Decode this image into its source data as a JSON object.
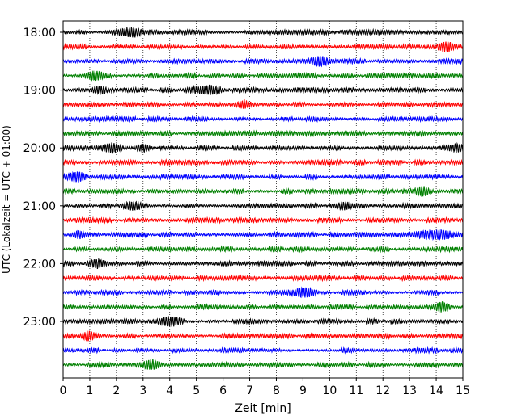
{
  "chart_data": {
    "type": "line",
    "title": "",
    "xlabel": "Zeit  [min]",
    "ylabel": "UTC (Lokalzeit = UTC + 01:00)",
    "xlim": [
      0,
      15
    ],
    "x_ticks": [
      "0",
      "1",
      "2",
      "3",
      "4",
      "5",
      "6",
      "7",
      "8",
      "9",
      "10",
      "11",
      "12",
      "13",
      "14",
      "15"
    ],
    "y_ticks": [
      "18:00",
      "19:00",
      "20:00",
      "21:00",
      "22:00",
      "23:00"
    ],
    "x_grid": "dotted",
    "trace_colors": [
      "#000000",
      "#ff0000",
      "#0000ff",
      "#008000"
    ],
    "traces": [
      {
        "start": "18:00",
        "color": "#000000",
        "bursts": [
          [
            2.6,
            0.9
          ]
        ]
      },
      {
        "start": "18:15",
        "color": "#ff0000",
        "bursts": [
          [
            14.4,
            0.7
          ]
        ]
      },
      {
        "start": "18:30",
        "color": "#0000ff",
        "bursts": [
          [
            9.6,
            0.6
          ]
        ]
      },
      {
        "start": "18:45",
        "color": "#008000",
        "bursts": [
          [
            1.2,
            0.6
          ]
        ]
      },
      {
        "start": "19:00",
        "color": "#000000",
        "bursts": [
          [
            5.4,
            1.0
          ],
          [
            1.4,
            0.6
          ]
        ]
      },
      {
        "start": "19:15",
        "color": "#ff0000",
        "bursts": [
          [
            6.8,
            0.6
          ]
        ]
      },
      {
        "start": "19:30",
        "color": "#0000ff",
        "bursts": []
      },
      {
        "start": "19:45",
        "color": "#008000",
        "bursts": []
      },
      {
        "start": "20:00",
        "color": "#000000",
        "bursts": [
          [
            1.8,
            0.7
          ],
          [
            3.0,
            0.5
          ],
          [
            14.8,
            0.6
          ]
        ]
      },
      {
        "start": "20:15",
        "color": "#ff0000",
        "bursts": []
      },
      {
        "start": "20:30",
        "color": "#0000ff",
        "bursts": [
          [
            0.5,
            0.6
          ]
        ]
      },
      {
        "start": "20:45",
        "color": "#008000",
        "bursts": [
          [
            13.5,
            0.5
          ]
        ]
      },
      {
        "start": "21:00",
        "color": "#000000",
        "bursts": [
          [
            2.6,
            0.7
          ],
          [
            10.6,
            0.5
          ]
        ]
      },
      {
        "start": "21:15",
        "color": "#ff0000",
        "bursts": []
      },
      {
        "start": "21:30",
        "color": "#0000ff",
        "bursts": [
          [
            14.0,
            1.6
          ],
          [
            0.6,
            0.5
          ]
        ]
      },
      {
        "start": "21:45",
        "color": "#008000",
        "bursts": []
      },
      {
        "start": "22:00",
        "color": "#000000",
        "bursts": [
          [
            1.3,
            0.6
          ]
        ]
      },
      {
        "start": "22:15",
        "color": "#ff0000",
        "bursts": []
      },
      {
        "start": "22:30",
        "color": "#0000ff",
        "bursts": [
          [
            9.0,
            0.7
          ]
        ]
      },
      {
        "start": "22:45",
        "color": "#008000",
        "bursts": [
          [
            14.2,
            0.5
          ]
        ]
      },
      {
        "start": "23:00",
        "color": "#000000",
        "bursts": [
          [
            4.0,
            0.8
          ]
        ]
      },
      {
        "start": "23:15",
        "color": "#ff0000",
        "bursts": [
          [
            0.9,
            0.5
          ]
        ]
      },
      {
        "start": "23:30",
        "color": "#0000ff",
        "bursts": []
      },
      {
        "start": "23:45",
        "color": "#008000",
        "bursts": [
          [
            3.3,
            0.6
          ]
        ]
      }
    ]
  }
}
